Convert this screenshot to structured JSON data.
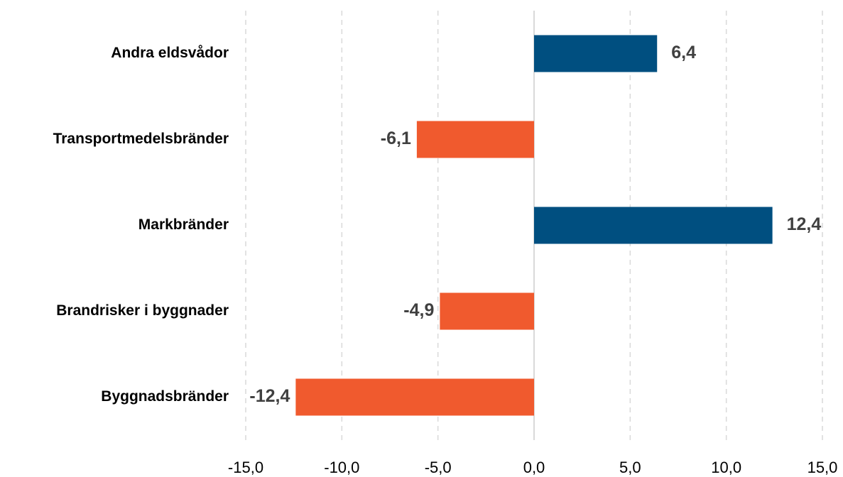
{
  "chart_data": {
    "type": "hbar",
    "categories": [
      "Andra eldsvådor",
      "Transportmedelsbränder",
      "Markbränder",
      "Brandrisker i byggnader",
      "Byggnadsbränder"
    ],
    "values": [
      6.4,
      -6.1,
      12.4,
      -4.9,
      -12.4
    ],
    "value_labels": [
      "6,4",
      "-6,1",
      "12,4",
      "-4,9",
      "-12,4"
    ],
    "colors": [
      "#004f80",
      "#f05a2e",
      "#004f80",
      "#f05a2e",
      "#f05a2e"
    ],
    "xlim": [
      -15,
      15
    ],
    "xticks": [
      {
        "value": -15,
        "label": "-15,0"
      },
      {
        "value": -10,
        "label": "-10,0"
      },
      {
        "value": -5,
        "label": "-5,0"
      },
      {
        "value": 0,
        "label": "0,0"
      },
      {
        "value": 5,
        "label": "5,0"
      },
      {
        "value": 10,
        "label": "10,0"
      },
      {
        "value": 15,
        "label": "15,0"
      }
    ],
    "grid": true
  }
}
